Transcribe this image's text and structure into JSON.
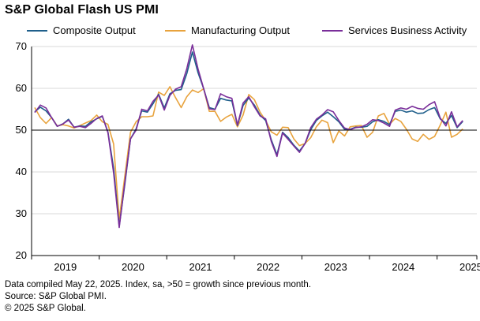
{
  "title": "S&P Global Flash US PMI",
  "footer": {
    "line1": "Data compiled May 22, 2025. Index, sa, >50 = growth since previous month.",
    "line2": "Source: S&P Global PMI.",
    "line3": "© 2025 S&P Global."
  },
  "chart_data": {
    "type": "line",
    "title": "S&P Global Flash US PMI",
    "xlabel": "",
    "ylabel": "",
    "ylim": [
      20,
      70
    ],
    "yticks": [
      "20",
      "30",
      "40",
      "50",
      "60",
      "70"
    ],
    "xtick_labels": [
      "2019",
      "2020",
      "2021",
      "2022",
      "2023",
      "2024",
      "2025"
    ],
    "x_start": "2019-01",
    "x_end": "2025-05",
    "reference_line": 50,
    "grid": "horizontal",
    "series": [
      {
        "name": "Composite Output",
        "color": "#1f5f8b",
        "values": [
          54.4,
          55.5,
          54.6,
          53.0,
          50.9,
          51.5,
          52.6,
          50.7,
          51.0,
          50.9,
          52.0,
          52.7,
          53.3,
          49.6,
          40.9,
          27.0,
          37.0,
          47.9,
          50.3,
          54.6,
          54.3,
          56.3,
          58.6,
          55.3,
          58.7,
          59.5,
          59.7,
          63.5,
          68.7,
          63.7,
          59.9,
          55.4,
          55.0,
          57.6,
          57.2,
          57.0,
          51.1,
          55.9,
          57.7,
          56.0,
          53.6,
          52.3,
          47.7,
          44.1,
          49.5,
          48.2,
          46.4,
          45.0,
          46.8,
          50.1,
          52.3,
          53.4,
          54.3,
          53.2,
          52.0,
          50.2,
          50.2,
          50.7,
          50.7,
          50.9,
          52.0,
          52.5,
          52.1,
          51.3,
          54.5,
          54.8,
          54.3,
          54.6,
          54.0,
          54.1,
          54.9,
          55.4,
          52.7,
          51.6,
          53.5,
          50.6,
          52.1
        ]
      },
      {
        "name": "Manufacturing Output",
        "color": "#e8a33d",
        "values": [
          55.4,
          53.0,
          51.6,
          53.0,
          51.0,
          51.3,
          51.0,
          50.5,
          51.1,
          51.7,
          52.3,
          53.6,
          52.0,
          51.4,
          46.7,
          28.7,
          39.0,
          49.5,
          52.0,
          53.2,
          53.2,
          53.4,
          59.1,
          58.3,
          60.4,
          57.8,
          55.4,
          58.0,
          59.6,
          59.0,
          59.9,
          54.5,
          54.5,
          52.1,
          53.1,
          53.8,
          50.8,
          53.6,
          58.5,
          57.3,
          54.3,
          52.3,
          49.6,
          48.8,
          50.7,
          50.6,
          47.9,
          46.3,
          46.8,
          48.2,
          50.8,
          52.4,
          51.8,
          47.0,
          49.8,
          48.6,
          50.8,
          51.0,
          51.1,
          48.3,
          49.5,
          53.4,
          54.0,
          51.4,
          52.8,
          52.1,
          50.2,
          47.9,
          47.3,
          49.0,
          47.8,
          48.5,
          51.2,
          54.3,
          48.3,
          49.0,
          50.3
        ]
      },
      {
        "name": "Services Business Activity",
        "color": "#7a2e9a",
        "values": [
          54.2,
          56.0,
          55.3,
          53.0,
          50.9,
          51.5,
          52.4,
          50.7,
          50.9,
          50.6,
          51.6,
          52.8,
          53.4,
          49.4,
          39.8,
          26.7,
          37.5,
          47.9,
          50.0,
          55.0,
          54.6,
          56.9,
          58.4,
          54.8,
          58.3,
          59.8,
          60.4,
          64.7,
          70.4,
          64.6,
          59.9,
          55.1,
          54.9,
          58.7,
          58.0,
          57.6,
          51.2,
          56.5,
          58.0,
          55.6,
          53.4,
          52.7,
          47.3,
          43.7,
          49.3,
          47.8,
          46.2,
          44.7,
          46.8,
          50.6,
          52.6,
          53.6,
          54.9,
          54.4,
          52.3,
          50.5,
          50.1,
          50.6,
          50.8,
          51.4,
          52.5,
          52.3,
          51.7,
          50.9,
          54.8,
          55.3,
          55.0,
          55.7,
          55.2,
          55.0,
          56.1,
          56.8,
          52.9,
          51.0,
          54.4,
          50.8,
          52.3
        ]
      }
    ]
  }
}
